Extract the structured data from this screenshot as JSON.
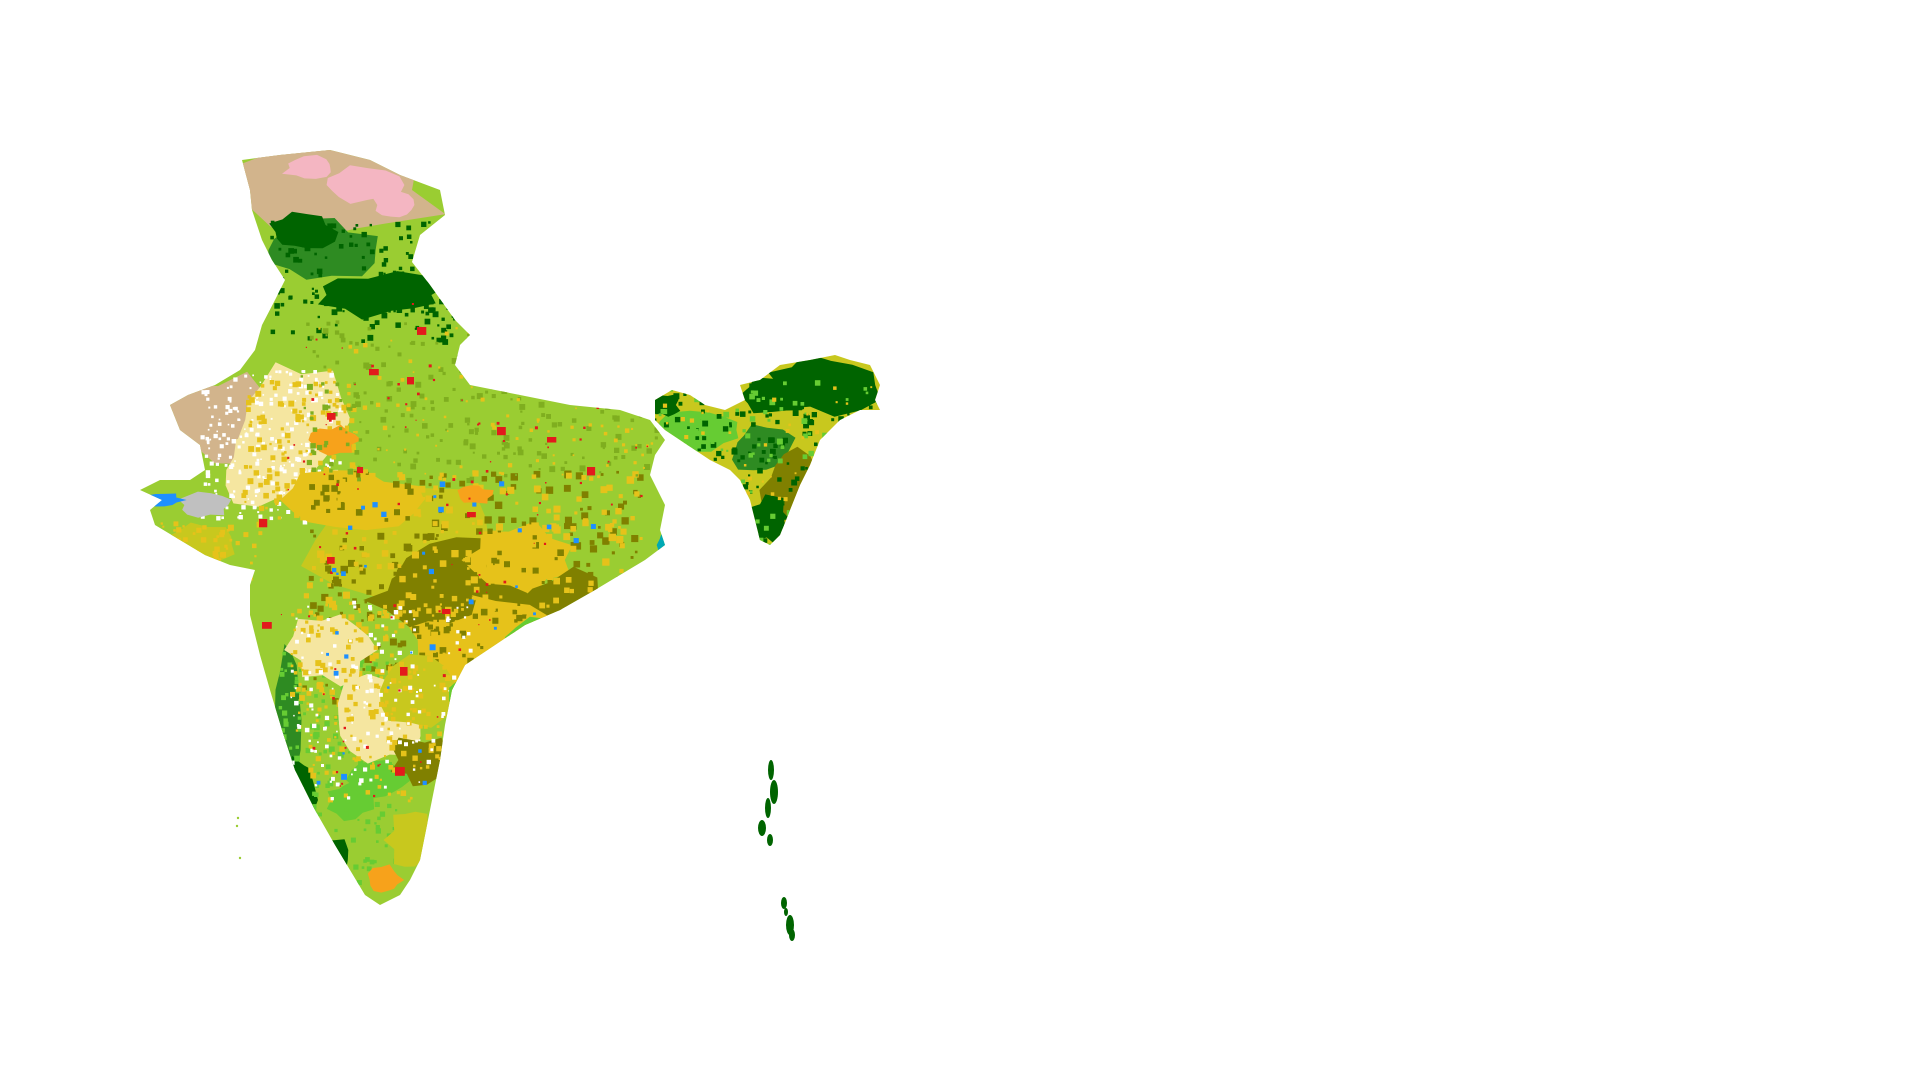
{
  "map": {
    "region": "India",
    "background_color": "#ffffff",
    "land_cover_colors": {
      "cropland": "#9acd32",
      "cropland_dark": "#7fae1f",
      "mixed_cropland": "#c8c81e",
      "shrubland": "#e6c21a",
      "sparse_vegetation": "#f5e6a0",
      "savanna": "#808000",
      "grassland": "#66cc33",
      "evergreen_forest": "#006400",
      "deciduous_forest": "#2e8b22",
      "barren_desert": "#d2b48c",
      "snow_ice": "#f4b6c2",
      "urban": "#e31a1c",
      "orange_patch": "#f7a21b",
      "water": "#1e90ff",
      "wetland": "#00a9b5",
      "salt_flat": "#c0c0c0"
    }
  }
}
